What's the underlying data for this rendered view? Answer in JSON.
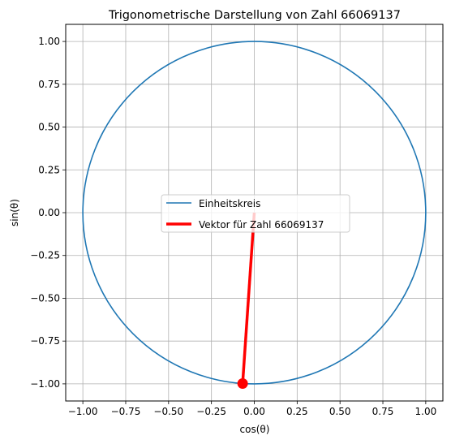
{
  "chart_data": {
    "type": "line",
    "title": "Trigonometrische Darstellung von Zahl 66069137",
    "xlabel": "cos(θ)",
    "ylabel": "sin(θ)",
    "xlim": [
      -1.1,
      1.1
    ],
    "ylim": [
      -1.1,
      1.1
    ],
    "xticks": [
      -1.0,
      -0.75,
      -0.5,
      -0.25,
      0.0,
      0.25,
      0.5,
      0.75,
      1.0
    ],
    "yticks": [
      -1.0,
      -0.75,
      -0.5,
      -0.25,
      0.0,
      0.25,
      0.5,
      0.75,
      1.0
    ],
    "xtick_labels": [
      "−1.00",
      "−0.75",
      "−0.50",
      "−0.25",
      "0.00",
      "0.25",
      "0.50",
      "0.75",
      "1.00"
    ],
    "ytick_labels": [
      "−1.00",
      "−0.75",
      "−0.50",
      "−0.25",
      "0.00",
      "0.25",
      "0.50",
      "0.75",
      "1.00"
    ],
    "grid": true,
    "legend_position": "center",
    "series": [
      {
        "name": "Einheitskreis",
        "kind": "circle",
        "radius": 1.0,
        "color": "#1f77b4"
      },
      {
        "name": "Vektor für Zahl 66069137",
        "kind": "vector",
        "x": [
          0.0,
          -0.068
        ],
        "y": [
          0.0,
          -0.998
        ],
        "color": "#ff0000",
        "endpoint_marker": true
      }
    ]
  }
}
